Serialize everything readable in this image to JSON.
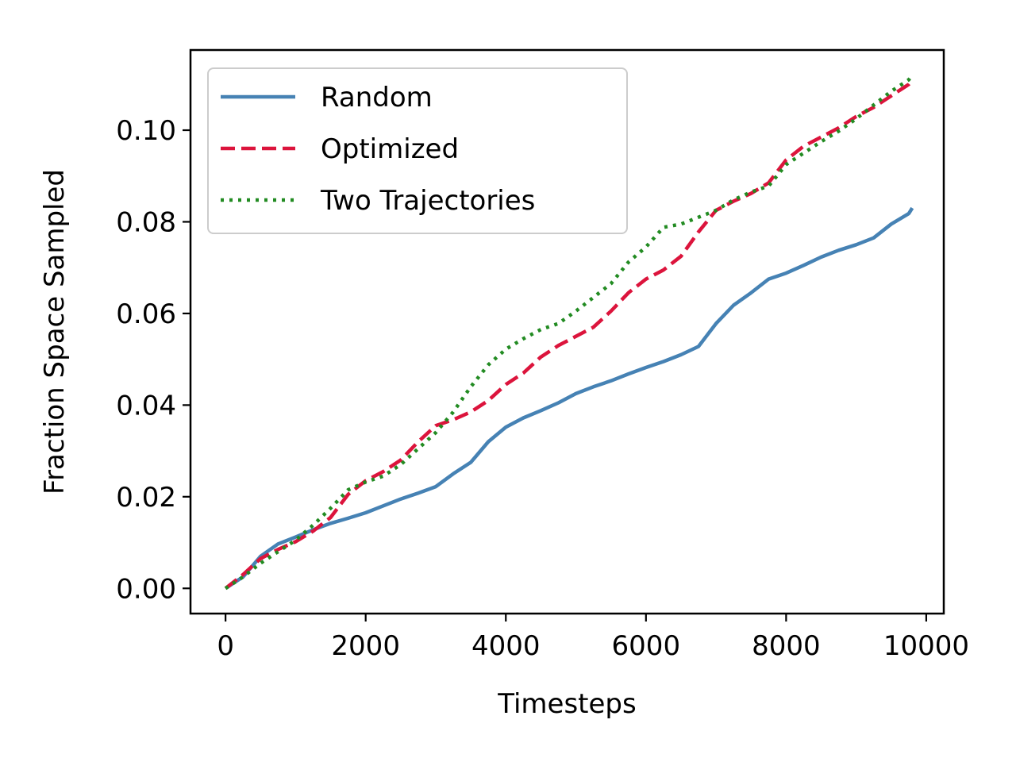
{
  "chart_data": {
    "type": "line",
    "title": "",
    "xlabel": "Timesteps",
    "ylabel": "Fraction Space Sampled",
    "xlim": [
      -500,
      10250
    ],
    "ylim": [
      -0.0055,
      0.1175
    ],
    "xticks": [
      0,
      2000,
      4000,
      6000,
      8000,
      10000
    ],
    "xtick_labels": [
      "0",
      "2000",
      "4000",
      "6000",
      "8000",
      "10000"
    ],
    "yticks": [
      0.0,
      0.02,
      0.04,
      0.06,
      0.08,
      0.1
    ],
    "ytick_labels": [
      "0.00",
      "0.02",
      "0.04",
      "0.06",
      "0.08",
      "0.10"
    ],
    "grid": false,
    "legend_position": "upper-left",
    "x": [
      0,
      250,
      500,
      750,
      1000,
      1250,
      1500,
      1750,
      2000,
      2250,
      2500,
      2750,
      3000,
      3250,
      3500,
      3750,
      4000,
      4250,
      4500,
      4750,
      5000,
      5250,
      5500,
      5750,
      6000,
      6250,
      6500,
      6750,
      7000,
      7250,
      7500,
      7750,
      8000,
      8250,
      8500,
      8750,
      9000,
      9250,
      9500,
      9750,
      9800
    ],
    "series": [
      {
        "name": "Random",
        "color": "#4682b4",
        "dash": "solid",
        "values": [
          0.0,
          0.0025,
          0.007,
          0.0097,
          0.0112,
          0.0128,
          0.0142,
          0.0153,
          0.0165,
          0.018,
          0.0195,
          0.0208,
          0.0222,
          0.025,
          0.0275,
          0.032,
          0.0352,
          0.0372,
          0.0388,
          0.0405,
          0.0425,
          0.044,
          0.0453,
          0.0468,
          0.0482,
          0.0495,
          0.051,
          0.0528,
          0.0578,
          0.0618,
          0.0645,
          0.0675,
          0.0688,
          0.0705,
          0.0723,
          0.0738,
          0.075,
          0.0765,
          0.0795,
          0.0818,
          0.083
        ]
      },
      {
        "name": "Optimized",
        "color": "#dc143c",
        "dash": "dashed",
        "values": [
          0.0,
          0.003,
          0.0065,
          0.0085,
          0.0102,
          0.0125,
          0.0155,
          0.0205,
          0.0235,
          0.0255,
          0.028,
          0.032,
          0.0355,
          0.0368,
          0.0385,
          0.041,
          0.0445,
          0.047,
          0.0505,
          0.053,
          0.055,
          0.057,
          0.0605,
          0.0645,
          0.0675,
          0.0695,
          0.0725,
          0.0778,
          0.0825,
          0.0845,
          0.0862,
          0.0885,
          0.0935,
          0.0965,
          0.0985,
          0.1005,
          0.103,
          0.105,
          0.1075,
          0.11,
          0.111
        ]
      },
      {
        "name": "Two Trajectories",
        "color": "#228b22",
        "dash": "dotted",
        "values": [
          0.0,
          0.0025,
          0.0055,
          0.008,
          0.0105,
          0.0138,
          0.0175,
          0.0215,
          0.0232,
          0.0245,
          0.027,
          0.0305,
          0.034,
          0.0385,
          0.044,
          0.0488,
          0.0522,
          0.0545,
          0.0565,
          0.0578,
          0.0605,
          0.0635,
          0.0665,
          0.0712,
          0.0745,
          0.0788,
          0.0795,
          0.081,
          0.0825,
          0.0848,
          0.0865,
          0.0878,
          0.0925,
          0.095,
          0.0975,
          0.0998,
          0.1025,
          0.1055,
          0.1085,
          0.111,
          0.112
        ]
      }
    ]
  }
}
